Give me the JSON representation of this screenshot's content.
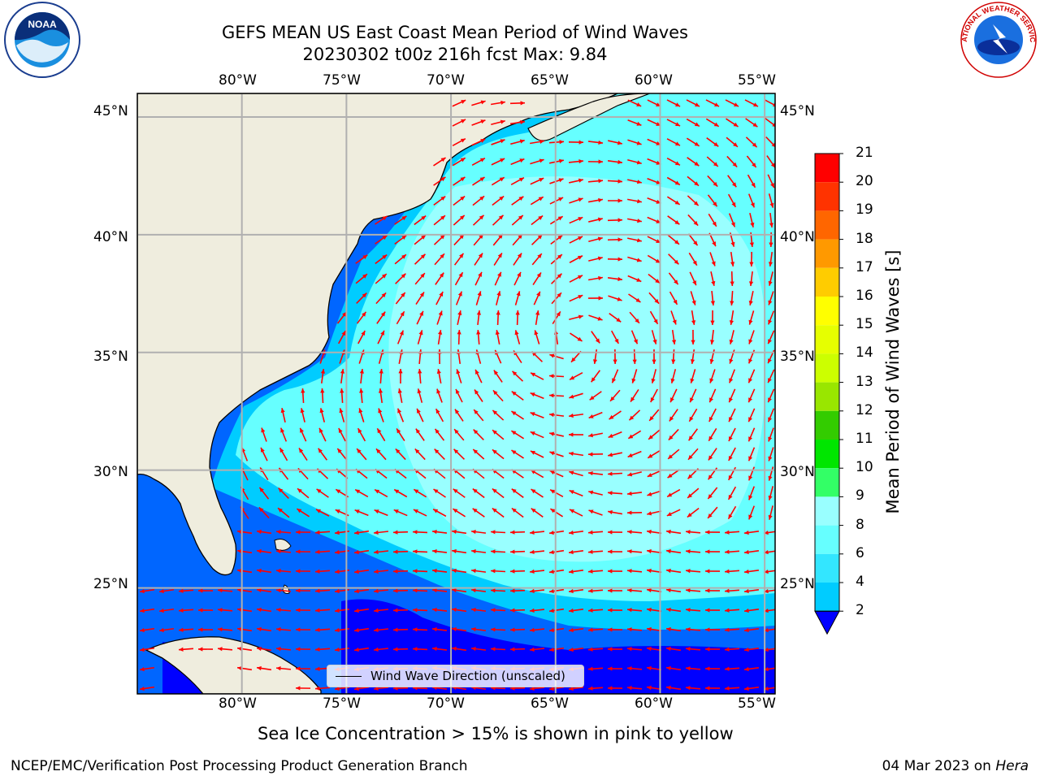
{
  "header": {
    "title_line1": "GEFS MEAN US East Coast Mean Period of Wind Waves",
    "title_line2": "20230302 t00z 216h fcst   Max: 9.84"
  },
  "logos": {
    "left": {
      "icon": "noaa-logo",
      "text": "NOAA"
    },
    "right": {
      "icon": "nws-logo",
      "text": "NATIONAL WEATHER SERVICE"
    }
  },
  "map": {
    "lon_labels": [
      "80°W",
      "75°W",
      "70°W",
      "65°W",
      "60°W",
      "55°W"
    ],
    "lat_labels": [
      "45°N",
      "40°N",
      "35°N",
      "30°N",
      "25°N"
    ],
    "lon_range": [
      -85,
      -54.5
    ],
    "lat_range": [
      20.5,
      46
    ],
    "land_color": "#efedde",
    "arrow_color": "#ff0000"
  },
  "legend": {
    "label": "Wind Wave Direction (unscaled)"
  },
  "colorbar": {
    "title": "Mean Period of Wind Waves [s]",
    "tick_labels": [
      "2",
      "4",
      "6",
      "8",
      "9",
      "10",
      "11",
      "12",
      "13",
      "14",
      "15",
      "16",
      "17",
      "18",
      "19",
      "20",
      "21"
    ],
    "colors": [
      "#0066ff",
      "#00ccff",
      "#33e6ff",
      "#66ffff",
      "#99ffff",
      "#33ff66",
      "#00e600",
      "#33cc00",
      "#99e600",
      "#ccff00",
      "#e6ff00",
      "#ffff00",
      "#ffcc00",
      "#ff9900",
      "#ff6600",
      "#ff3300",
      "#ff0000"
    ],
    "under_color": "#0000ff",
    "ticks": [
      2,
      4,
      6,
      8,
      9,
      10,
      11,
      12,
      13,
      14,
      15,
      16,
      17,
      18,
      19,
      20,
      21
    ]
  },
  "note": "Sea Ice Concentration > 15% is shown in pink to yellow",
  "footer": {
    "left": "NCEP/EMC/Verification Post Processing Product Generation Branch",
    "date": "04 Mar 2023 on ",
    "host": "Hera"
  }
}
